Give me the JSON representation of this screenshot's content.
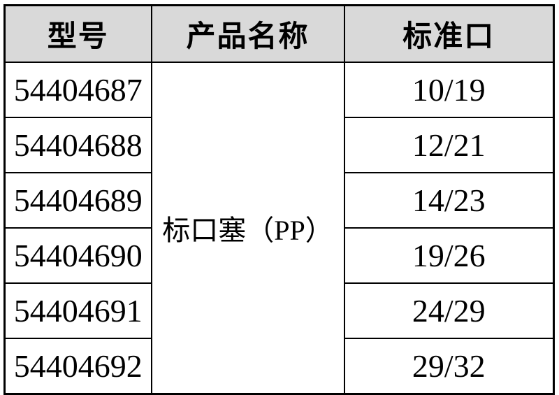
{
  "table": {
    "headers": {
      "model": "型号",
      "product_name": "产品名称",
      "standard_port": "标准口"
    },
    "product_name_merged": "标口塞（PP）",
    "rows": [
      {
        "model": "54404687",
        "size": "10/19"
      },
      {
        "model": "54404688",
        "size": "12/21"
      },
      {
        "model": "54404689",
        "size": "14/23"
      },
      {
        "model": "54404690",
        "size": "19/26"
      },
      {
        "model": "54404691",
        "size": "24/29"
      },
      {
        "model": "54404692",
        "size": "29/32"
      }
    ],
    "colors": {
      "header_bg": "#d9d9d9",
      "border": "#000000",
      "text": "#000000",
      "page_bg": "#ffffff"
    }
  }
}
